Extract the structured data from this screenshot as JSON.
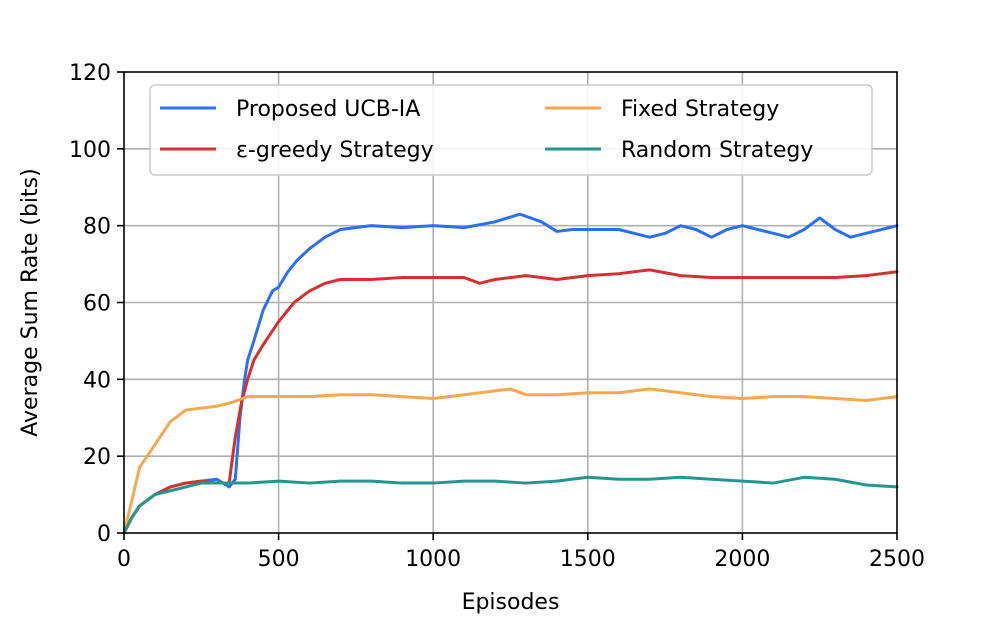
{
  "chart_data": {
    "type": "line",
    "title": "",
    "xlabel": "Episodes",
    "ylabel": "Average Sum Rate (bits)",
    "xlim": [
      0,
      2500
    ],
    "ylim": [
      0,
      120
    ],
    "xticks": [
      0,
      500,
      1000,
      1500,
      2000,
      2500
    ],
    "yticks": [
      0,
      20,
      40,
      60,
      80,
      100,
      120
    ],
    "grid": true,
    "legend_position": "top",
    "legend_columns": 2,
    "series": [
      {
        "name": "Proposed UCB-IA",
        "color": "#2b6ff2",
        "x": [
          0,
          25,
          50,
          100,
          150,
          200,
          250,
          300,
          340,
          360,
          375,
          390,
          400,
          420,
          450,
          480,
          500,
          530,
          560,
          600,
          650,
          700,
          800,
          900,
          1000,
          1100,
          1200,
          1280,
          1350,
          1400,
          1450,
          1500,
          1600,
          1650,
          1700,
          1750,
          1800,
          1850,
          1900,
          1950,
          2000,
          2050,
          2100,
          2150,
          2200,
          2250,
          2300,
          2350,
          2400,
          2450,
          2500
        ],
        "y": [
          0,
          4,
          7,
          10,
          12,
          13,
          13.5,
          14,
          12,
          14,
          30,
          40,
          45,
          50,
          58,
          63,
          64,
          68,
          71,
          74,
          77,
          79,
          80,
          79.5,
          80,
          79.5,
          81,
          83,
          81,
          78.5,
          79,
          79,
          79,
          78,
          77,
          78,
          80,
          79,
          77,
          79,
          80,
          79,
          78,
          77,
          79,
          82,
          79,
          77,
          78,
          79,
          80
        ]
      },
      {
        "name": "ε-greedy Strategy",
        "color": "#d62f2f",
        "x": [
          0,
          25,
          50,
          100,
          150,
          200,
          250,
          300,
          340,
          360,
          380,
          400,
          420,
          450,
          500,
          550,
          600,
          650,
          700,
          800,
          900,
          1000,
          1100,
          1150,
          1200,
          1300,
          1400,
          1500,
          1600,
          1700,
          1800,
          1900,
          2000,
          2100,
          2200,
          2300,
          2400,
          2450,
          2500
        ],
        "y": [
          0,
          4,
          7,
          10,
          12,
          13,
          13.5,
          13,
          13,
          25,
          34,
          40,
          45,
          49,
          55,
          60,
          63,
          65,
          66,
          66,
          66.5,
          66.5,
          66.5,
          65,
          66,
          67,
          66,
          67,
          67.5,
          68.5,
          67,
          66.5,
          66.5,
          66.5,
          66.5,
          66.5,
          67,
          67.5,
          68
        ]
      },
      {
        "name": "Fixed Strategy",
        "color": "#f7a84e",
        "x": [
          0,
          15,
          30,
          50,
          75,
          100,
          150,
          200,
          250,
          300,
          350,
          400,
          450,
          500,
          600,
          700,
          800,
          900,
          1000,
          1100,
          1200,
          1250,
          1300,
          1400,
          1500,
          1600,
          1650,
          1700,
          1800,
          1900,
          2000,
          2100,
          2200,
          2300,
          2400,
          2500
        ],
        "y": [
          0,
          5,
          10,
          17,
          20,
          23,
          29,
          32,
          32.5,
          33,
          34,
          35.5,
          35.5,
          35.5,
          35.5,
          36,
          36,
          35.5,
          35,
          36,
          37,
          37.5,
          36,
          36,
          36.5,
          36.5,
          37,
          37.5,
          36.5,
          35.5,
          35,
          35.5,
          35.5,
          35,
          34.5,
          35.5
        ]
      },
      {
        "name": "Random Strategy",
        "color": "#23978c",
        "x": [
          0,
          25,
          50,
          100,
          150,
          200,
          250,
          300,
          350,
          400,
          500,
          600,
          700,
          800,
          900,
          1000,
          1100,
          1200,
          1300,
          1400,
          1500,
          1600,
          1700,
          1800,
          1900,
          2000,
          2100,
          2200,
          2300,
          2400,
          2500
        ],
        "y": [
          0,
          4,
          7,
          10,
          11,
          12,
          13,
          13,
          13,
          13,
          13.5,
          13,
          13.5,
          13.5,
          13,
          13,
          13.5,
          13.5,
          13,
          13.5,
          14.5,
          14,
          14,
          14.5,
          14,
          13.5,
          13,
          14.5,
          14,
          12.5,
          12
        ]
      }
    ]
  }
}
